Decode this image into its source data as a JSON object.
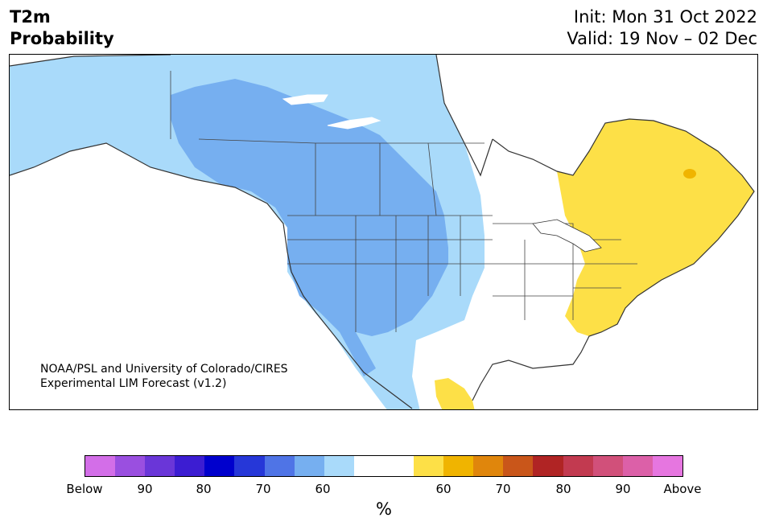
{
  "header": {
    "title_line1": "T2m",
    "title_line2": "Probability",
    "init": "Init: Mon 31 Oct 2022",
    "valid": "Valid: 19 Nov – 02 Dec"
  },
  "credit": {
    "line1": "NOAA/PSL and University of Colorado/CIRES",
    "line2": "Experimental LIM Forecast (v1.2)"
  },
  "colorbar": {
    "colors": [
      "#d36ee8",
      "#9a4fe0",
      "#6a36d8",
      "#3c1dd2",
      "#0000cd",
      "#2637d8",
      "#4f74e6",
      "#76aff0",
      "#a9dafa",
      "#ffffff",
      "#ffffff",
      "#fde047",
      "#f0b400",
      "#e0860c",
      "#c9561a",
      "#b02424",
      "#c23a50",
      "#d1507a",
      "#dc60a8",
      "#e676e0"
    ],
    "labels": [
      "Below",
      "90",
      "80",
      "70",
      "60",
      "60",
      "70",
      "80",
      "90",
      "Above"
    ],
    "unit": "%"
  },
  "map": {
    "below_light_color": "#a9dafa",
    "below_mid_color": "#76aff0",
    "above_color": "#fde047",
    "above_dark_color": "#f0b400"
  }
}
